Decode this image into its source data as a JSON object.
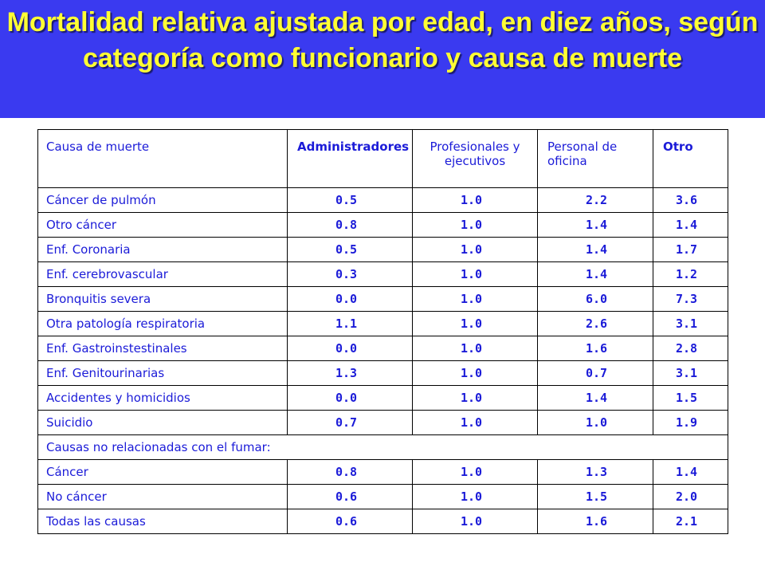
{
  "title": "Mortalidad relativa ajustada por edad, en diez años, según categoría como funcionario y causa de muerte",
  "colors": {
    "banner": "#3a3af0",
    "title": "#ffff33",
    "table_text": "#1b1bd8"
  },
  "table": {
    "headers": [
      "Causa de muerte",
      "Administradores",
      "Profesionales y ejecutivos",
      "Personal de oficina",
      "Otro"
    ],
    "rows_a": [
      {
        "cause": "Cáncer de pulmón",
        "v": [
          "0.5",
          "1.0",
          "2.2",
          "3.6"
        ]
      },
      {
        "cause": "Otro cáncer",
        "v": [
          "0.8",
          "1.0",
          "1.4",
          "1.4"
        ]
      },
      {
        "cause": "Enf. Coronaria",
        "v": [
          "0.5",
          "1.0",
          "1.4",
          "1.7"
        ]
      },
      {
        "cause": "Enf. cerebrovascular",
        "v": [
          "0.3",
          "1.0",
          "1.4",
          "1.2"
        ]
      },
      {
        "cause": "Bronquitis severa",
        "v": [
          "0.0",
          "1.0",
          "6.0",
          "7.3"
        ]
      },
      {
        "cause": "Otra patología respiratoria",
        "v": [
          "1.1",
          "1.0",
          "2.6",
          "3.1"
        ]
      },
      {
        "cause": "Enf. Gastroinstestinales",
        "v": [
          "0.0",
          "1.0",
          "1.6",
          "2.8"
        ]
      },
      {
        "cause": "Enf. Genitourinarias",
        "v": [
          "1.3",
          "1.0",
          "0.7",
          "3.1"
        ]
      },
      {
        "cause": "Accidentes y homicidios",
        "v": [
          "0.0",
          "1.0",
          "1.4",
          "1.5"
        ]
      },
      {
        "cause": "Suicidio",
        "v": [
          "0.7",
          "1.0",
          "1.0",
          "1.9"
        ]
      }
    ],
    "section_label": "Causas no relacionadas con el fumar:",
    "rows_b": [
      {
        "cause": "Cáncer",
        "v": [
          "0.8",
          "1.0",
          "1.3",
          "1.4"
        ]
      },
      {
        "cause": "No cáncer",
        "v": [
          "0.6",
          "1.0",
          "1.5",
          "2.0"
        ]
      },
      {
        "cause": "Todas las causas",
        "v": [
          "0.6",
          "1.0",
          "1.6",
          "2.1"
        ]
      }
    ]
  }
}
